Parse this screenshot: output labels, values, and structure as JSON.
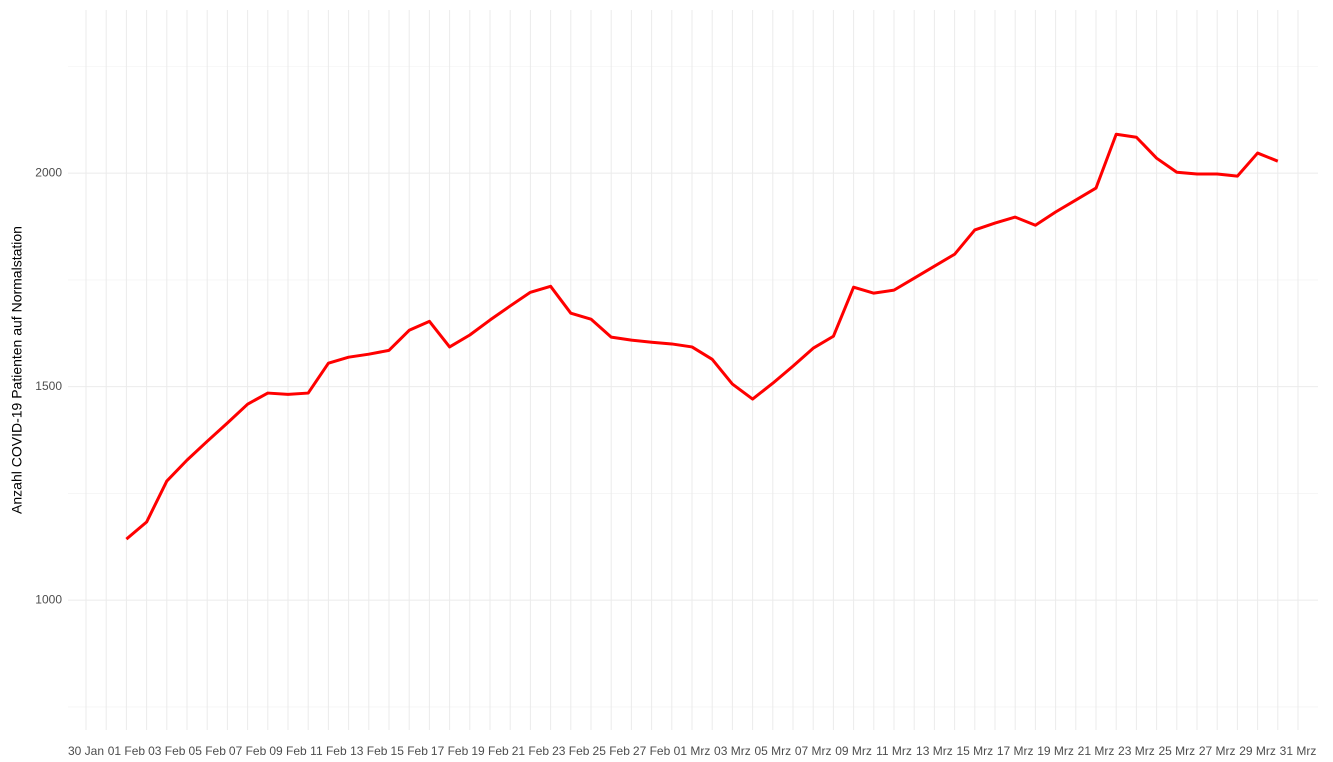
{
  "chart_data": {
    "type": "line",
    "y_label": "Anzahl COVID-19 Patienten auf Normalstation",
    "categories": [
      "30 Jan",
      null,
      "01 Feb",
      null,
      "03 Feb",
      null,
      "05 Feb",
      null,
      "07 Feb",
      null,
      "09 Feb",
      null,
      "11 Feb",
      null,
      "13 Feb",
      null,
      "15 Feb",
      null,
      "17 Feb",
      null,
      "19 Feb",
      null,
      "21 Feb",
      null,
      "23 Feb",
      null,
      "25 Feb",
      null,
      "27 Feb",
      null,
      "01 Mrz",
      null,
      "03 Mrz",
      null,
      "05 Mrz",
      null,
      "07 Mrz",
      null,
      "09 Mrz",
      null,
      "11 Mrz",
      null,
      "13 Mrz",
      null,
      "15 Mrz",
      null,
      "17 Mrz",
      null,
      "19 Mrz",
      null,
      "21 Mrz",
      null,
      "23 Mrz",
      null,
      "25 Mrz",
      null,
      "27 Mrz",
      null,
      "29 Mrz",
      null,
      "31 Mrz"
    ],
    "series": [
      {
        "color": "#ff0000",
        "values": [
          null,
          null,
          1143,
          1183,
          1279,
          1328,
          1372,
          1415,
          1459,
          1485,
          1482,
          1485,
          1555,
          1569,
          1576,
          1585,
          1632,
          1653,
          1593,
          1621,
          1656,
          1689,
          1721,
          1735,
          1672,
          1658,
          1616,
          1609,
          1604,
          1600,
          1593,
          1564,
          1506,
          1471,
          1508,
          1548,
          1590,
          1618,
          1733,
          1719,
          1726,
          1754,
          1782,
          1810,
          1867,
          1883,
          1897,
          1878,
          1909,
          1937,
          1965,
          2091,
          2084,
          2035,
          2002,
          1998,
          1998,
          1993,
          2047,
          2028,
          null
        ]
      }
    ],
    "ylim": [
      696,
      2382
    ],
    "yticks": [
      1000,
      1500,
      2000
    ],
    "yminor": [
      750,
      1250,
      1750,
      2250
    ],
    "grid": true
  }
}
